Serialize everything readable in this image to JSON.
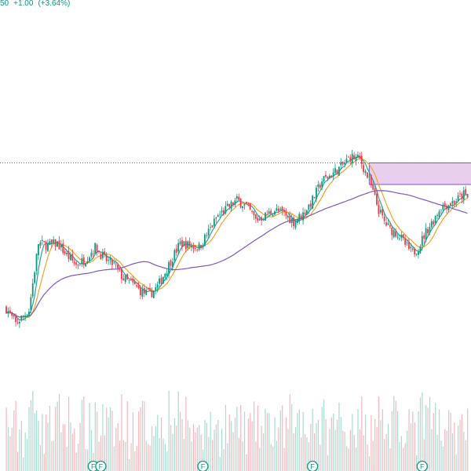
{
  "header": {
    "last_fragment": "50",
    "change": "+1.00",
    "change_pct": "(+3.64%)"
  },
  "colors": {
    "up": "#089981",
    "down": "#f23645",
    "up_volume": "#a8dcd1",
    "down_volume": "#f7b6bb",
    "ma_fast": "#26a69a",
    "ma_mid": "#f6a12b",
    "ma_slow": "#7e57c2",
    "zone_fill": "#e1bee7",
    "zone_stroke": "#7e57c2",
    "price_line": "#089981",
    "marker": "#089981"
  },
  "chart_data": {
    "type": "candlestick",
    "price_scale": {
      "min": 0,
      "max": 100
    },
    "volume_scale": {
      "min": 0,
      "max": 100
    },
    "bar_count": 245,
    "anchors": [
      [
        0,
        25
      ],
      [
        3,
        20
      ],
      [
        5,
        17
      ],
      [
        8,
        20
      ],
      [
        12,
        24
      ],
      [
        17,
        58
      ],
      [
        22,
        57
      ],
      [
        27,
        58
      ],
      [
        32,
        52
      ],
      [
        37,
        47
      ],
      [
        42,
        50
      ],
      [
        47,
        56
      ],
      [
        52,
        50
      ],
      [
        57,
        47
      ],
      [
        62,
        40
      ],
      [
        67,
        37
      ],
      [
        72,
        33
      ],
      [
        76,
        32
      ],
      [
        80,
        36
      ],
      [
        85,
        45
      ],
      [
        88,
        51
      ],
      [
        92,
        58
      ],
      [
        97,
        57
      ],
      [
        102,
        56
      ],
      [
        107,
        64
      ],
      [
        112,
        72
      ],
      [
        117,
        76
      ],
      [
        122,
        80
      ],
      [
        127,
        77
      ],
      [
        132,
        70
      ],
      [
        137,
        72
      ],
      [
        142,
        75
      ],
      [
        147,
        73
      ],
      [
        152,
        69
      ],
      [
        157,
        73
      ],
      [
        162,
        80
      ],
      [
        167,
        90
      ],
      [
        172,
        93
      ],
      [
        177,
        97
      ],
      [
        182,
        102
      ],
      [
        187,
        101
      ],
      [
        192,
        90
      ],
      [
        197,
        75
      ],
      [
        200,
        69
      ],
      [
        203,
        65
      ],
      [
        207,
        63
      ],
      [
        212,
        56
      ],
      [
        215,
        53
      ],
      [
        218,
        56
      ],
      [
        222,
        64
      ],
      [
        226,
        70
      ],
      [
        230,
        77
      ],
      [
        234,
        78
      ],
      [
        238,
        80
      ],
      [
        242,
        83
      ],
      [
        245,
        80
      ]
    ],
    "moving_averages": [
      {
        "period": 5,
        "color_key": "ma_fast"
      },
      {
        "period": 10,
        "color_key": "ma_mid"
      },
      {
        "period": 60,
        "color_key": "ma_slow"
      }
    ],
    "horizontal_line": {
      "value": 99
    },
    "zone": {
      "start_bar": 192,
      "end_bar": 245,
      "low": 88,
      "high": 99
    },
    "dividend_markers": {
      "label": "F",
      "bars": [
        46,
        50,
        104,
        162,
        220
      ]
    }
  }
}
